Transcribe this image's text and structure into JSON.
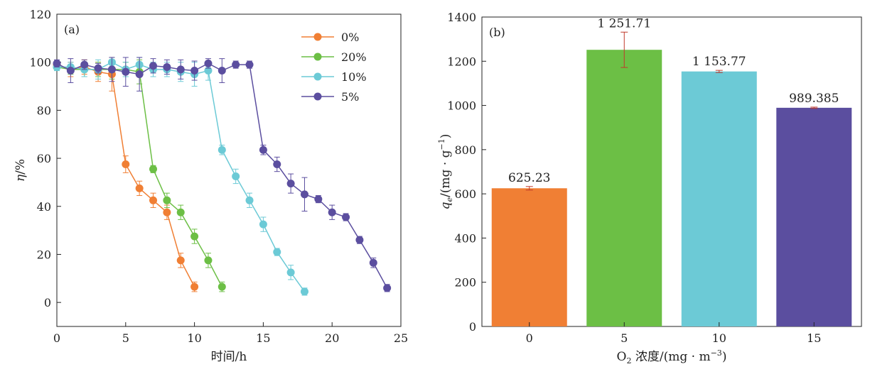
{
  "chart_data": [
    {
      "type": "line",
      "panel_label": "(a)",
      "xlabel": "时间/h",
      "ylabel_main": "η",
      "ylabel_unit": "/%",
      "xlim": [
        0,
        25
      ],
      "ylim": [
        -10,
        120
      ],
      "xticks": [
        0,
        5,
        10,
        15,
        20,
        25
      ],
      "yticks": [
        0,
        20,
        40,
        60,
        80,
        100,
        120
      ],
      "legend_position": "top-right",
      "series": [
        {
          "name": "0%",
          "color": "#f07f34",
          "points": [
            [
              0,
              99
            ],
            [
              1,
              97
            ],
            [
              2,
              98
            ],
            [
              3,
              96
            ],
            [
              4,
              95
            ],
            [
              5,
              57.5
            ],
            [
              6,
              47.5
            ],
            [
              7,
              42.5
            ],
            [
              8,
              37.5
            ],
            [
              9,
              17.5
            ],
            [
              10,
              6.5
            ]
          ],
          "errors": [
            1.5,
            3,
            3,
            4,
            7,
            3.5,
            3,
            3,
            3,
            3,
            2
          ]
        },
        {
          "name": "20%",
          "color": "#6cbf45",
          "points": [
            [
              0,
              98
            ],
            [
              1,
              97
            ],
            [
              2,
              97
            ],
            [
              3,
              97
            ],
            [
              4,
              97
            ],
            [
              5,
              97
            ],
            [
              6,
              96
            ],
            [
              7,
              55.5
            ],
            [
              8,
              42.5
            ],
            [
              9,
              37.5
            ],
            [
              10,
              27.5
            ],
            [
              11,
              17.5
            ],
            [
              12,
              6.5
            ]
          ],
          "errors": [
            1.5,
            2,
            3,
            3,
            4,
            3,
            5,
            1.5,
            3,
            3,
            3,
            3,
            2
          ]
        },
        {
          "name": "10%",
          "color": "#6ccad6",
          "points": [
            [
              0,
              98
            ],
            [
              1,
              98
            ],
            [
              2,
              97
            ],
            [
              3,
              97
            ],
            [
              4,
              100
            ],
            [
              5,
              97
            ],
            [
              6,
              99
            ],
            [
              7,
              97
            ],
            [
              8,
              97
            ],
            [
              9,
              96
            ],
            [
              10,
              95
            ],
            [
              11,
              96.5
            ],
            [
              12,
              63.5
            ],
            [
              13,
              52.5
            ],
            [
              14,
              42.5
            ],
            [
              15,
              32.5
            ],
            [
              16,
              21
            ],
            [
              17,
              12.5
            ],
            [
              18,
              4.5
            ]
          ],
          "errors": [
            1.5,
            2,
            3,
            4,
            2,
            3,
            3,
            3,
            3,
            4,
            5,
            4,
            2,
            3,
            3,
            3,
            1.5,
            3,
            1.5
          ]
        },
        {
          "name": "5%",
          "color": "#5b4e9f",
          "points": [
            [
              0,
              99.5
            ],
            [
              1,
              96.5
            ],
            [
              2,
              99
            ],
            [
              3,
              97.5
            ],
            [
              4,
              97
            ],
            [
              5,
              96
            ],
            [
              6,
              95
            ],
            [
              7,
              98.5
            ],
            [
              8,
              98
            ],
            [
              9,
              97
            ],
            [
              10,
              96.5
            ],
            [
              11,
              99.5
            ],
            [
              12,
              96.5
            ],
            [
              13,
              99
            ],
            [
              14,
              99
            ],
            [
              15,
              63.5
            ],
            [
              16,
              57.5
            ],
            [
              17,
              49.5
            ],
            [
              18,
              45
            ],
            [
              19,
              43
            ],
            [
              20,
              37.5
            ],
            [
              21,
              35.5
            ],
            [
              22,
              26
            ],
            [
              23,
              16.5
            ],
            [
              24,
              6
            ]
          ],
          "errors": [
            1.5,
            5,
            2,
            2,
            5,
            6,
            7,
            3,
            3,
            4,
            4,
            2,
            5,
            1.5,
            1.5,
            2,
            3,
            4,
            7,
            1.5,
            3,
            1.5,
            1.5,
            2,
            1.5
          ]
        }
      ]
    },
    {
      "type": "bar",
      "panel_label": "(b)",
      "xlabel_o": "O",
      "xlabel_sub": "2",
      "xlabel_rest": " 浓度/(mg · m",
      "xlabel_sup": "−3",
      "xlabel_close": ")",
      "ylabel_q": "q",
      "ylabel_sub": "e",
      "ylabel_rest": "/(mg · g",
      "ylabel_sup": "−1",
      "ylabel_close": ")",
      "ylim": [
        0,
        1400
      ],
      "yticks": [
        0,
        200,
        400,
        600,
        800,
        1000,
        1200,
        1400
      ],
      "categories": [
        "0",
        "5",
        "10",
        "15"
      ],
      "values": [
        625.23,
        1251.71,
        1153.77,
        989.385
      ],
      "value_labels": [
        "625.23",
        "1 251.71",
        "1 153.77",
        "989.385"
      ],
      "errors": [
        8,
        80,
        5,
        3
      ],
      "colors": [
        "#f07f34",
        "#6cbf45",
        "#6ccad6",
        "#5b4e9f"
      ]
    }
  ]
}
